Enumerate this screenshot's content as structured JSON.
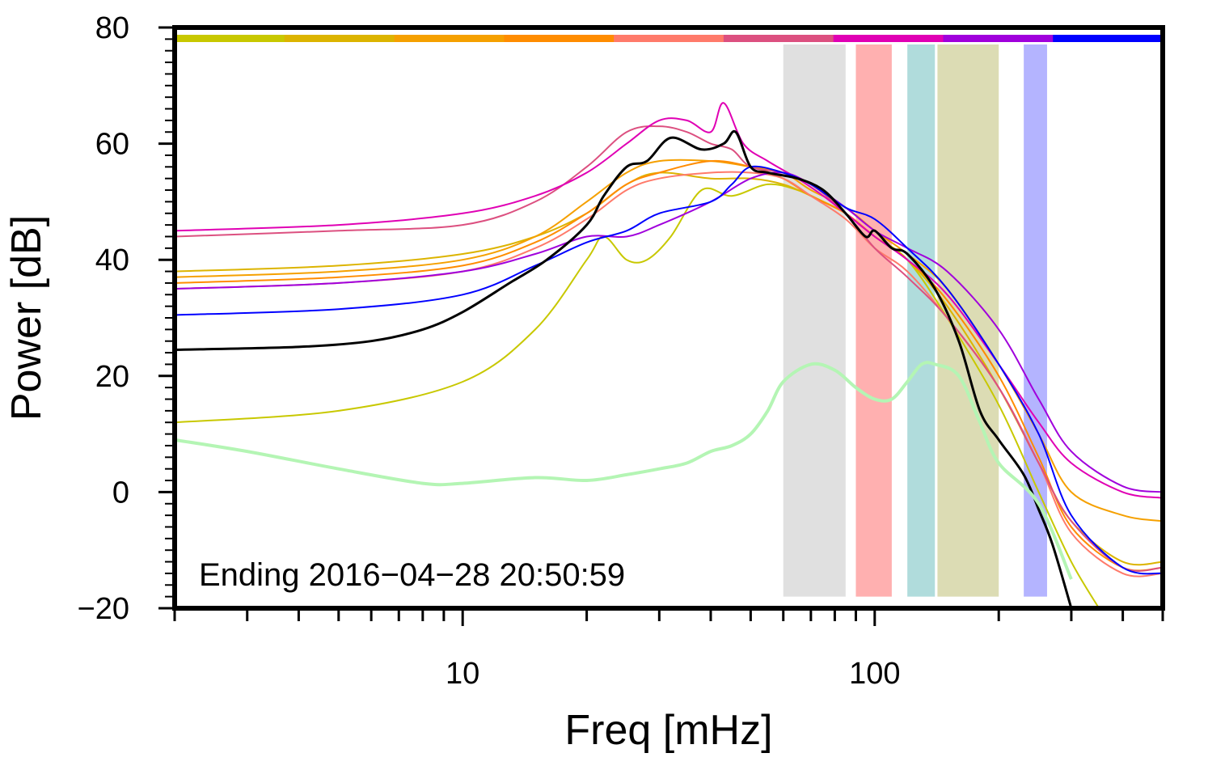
{
  "chart_data": {
    "type": "line",
    "xlabel": "Freq [mHz]",
    "ylabel": "Power [dB]",
    "x_scale": "log",
    "xlim": [
      2,
      500
    ],
    "ylim": [
      -20,
      80
    ],
    "x_ticks_labeled": [
      {
        "value": 10,
        "label": "10"
      },
      {
        "value": 100,
        "label": "100"
      }
    ],
    "y_ticks": [
      {
        "value": -20,
        "label": "−20"
      },
      {
        "value": 0,
        "label": "0"
      },
      {
        "value": 20,
        "label": "20"
      },
      {
        "value": 40,
        "label": "40"
      },
      {
        "value": 60,
        "label": "60"
      },
      {
        "value": 80,
        "label": "80"
      }
    ],
    "annotation": "Ending 2016−04−28 20:50:59",
    "grid": false,
    "top_color_bar": [
      "#c8c800",
      "#dcb400",
      "#f5a000",
      "#ff8c00",
      "#ff7a6a",
      "#dc5080",
      "#e000b4",
      "#a000dc",
      "#0000ff"
    ],
    "bands": [
      {
        "from": 60,
        "to": 85,
        "color": "#e0e0e0"
      },
      {
        "from": 90,
        "to": 110,
        "color": "#ffb0b0"
      },
      {
        "from": 120,
        "to": 140,
        "color": "#b0dcdc"
      },
      {
        "from": 142,
        "to": 200,
        "color": "#dcdcb4"
      },
      {
        "from": 230,
        "to": 262,
        "color": "#b4b4ff"
      }
    ],
    "series": [
      {
        "color": "#c8c800",
        "width": 2,
        "x": [
          2,
          5,
          10,
          15,
          20,
          22,
          25,
          28,
          32,
          38,
          45,
          55,
          65,
          75,
          85,
          100,
          120,
          150,
          200,
          250,
          300,
          350
        ],
        "y": [
          12,
          14,
          19,
          28,
          40,
          44,
          40,
          40,
          44,
          52,
          51,
          53,
          52,
          50,
          48,
          44,
          40,
          30,
          15,
          0,
          -12,
          -20
        ]
      },
      {
        "color": "#dcb400",
        "width": 2,
        "x": [
          2,
          5,
          10,
          15,
          20,
          25,
          30,
          40,
          50,
          60,
          70,
          85,
          100,
          120,
          150,
          200,
          250,
          300,
          400,
          500
        ],
        "y": [
          38,
          39,
          41,
          44,
          48,
          53,
          55,
          54,
          54,
          53,
          51,
          48,
          44,
          40,
          32,
          18,
          5,
          -5,
          -12,
          -12
        ]
      },
      {
        "color": "#f5a000",
        "width": 2,
        "x": [
          2,
          5,
          10,
          15,
          20,
          25,
          30,
          40,
          50,
          60,
          70,
          85,
          100,
          120,
          150,
          200,
          250,
          300,
          400,
          500
        ],
        "y": [
          37,
          38,
          40,
          44,
          50,
          55,
          57,
          57,
          56,
          55,
          52,
          49,
          45,
          41,
          35,
          22,
          10,
          0,
          -4,
          -5
        ]
      },
      {
        "color": "#ff8c00",
        "width": 2,
        "x": [
          2,
          5,
          10,
          15,
          20,
          25,
          30,
          40,
          50,
          60,
          70,
          85,
          100,
          120,
          150,
          200,
          250,
          300,
          400,
          500
        ],
        "y": [
          36,
          37,
          39,
          43,
          48,
          53,
          55,
          57,
          56,
          54,
          51,
          48,
          44,
          40,
          33,
          20,
          6,
          -6,
          -13,
          -13
        ]
      },
      {
        "color": "#ff7a6a",
        "width": 2,
        "x": [
          2,
          5,
          10,
          15,
          20,
          25,
          30,
          40,
          50,
          60,
          70,
          85,
          100,
          120,
          150,
          200,
          250,
          300,
          400,
          500
        ],
        "y": [
          35,
          36,
          38,
          42,
          47,
          52,
          54,
          55,
          55,
          54,
          51,
          47,
          42,
          38,
          30,
          18,
          5,
          -7,
          -14,
          -14
        ]
      },
      {
        "color": "#dc5080",
        "width": 2,
        "x": [
          2,
          5,
          10,
          15,
          20,
          25,
          30,
          35,
          40,
          45,
          50,
          60,
          70,
          85,
          100,
          120,
          150,
          200,
          250,
          300,
          400,
          500
        ],
        "y": [
          44,
          45,
          46,
          50,
          56,
          62,
          63,
          62,
          60,
          59,
          56,
          55,
          53,
          48,
          42,
          37,
          30,
          18,
          5,
          -5,
          -13,
          -13
        ]
      },
      {
        "color": "#e000b4",
        "width": 2,
        "x": [
          2,
          5,
          10,
          15,
          20,
          25,
          30,
          35,
          40,
          43,
          48,
          55,
          65,
          75,
          85,
          100,
          120,
          150,
          200,
          250,
          300,
          400,
          500
        ],
        "y": [
          45,
          46,
          48,
          51,
          55,
          60,
          64,
          64,
          62,
          67,
          60,
          57,
          54,
          51,
          48,
          44,
          40,
          34,
          22,
          12,
          5,
          0,
          -1
        ]
      },
      {
        "color": "#a000dc",
        "width": 2,
        "x": [
          2,
          5,
          10,
          15,
          20,
          25,
          30,
          40,
          50,
          60,
          70,
          85,
          100,
          120,
          150,
          200,
          250,
          300,
          400,
          500
        ],
        "y": [
          35,
          36,
          38,
          41,
          44,
          44,
          46,
          50,
          54,
          55,
          53,
          49,
          45,
          42,
          38,
          28,
          16,
          7,
          1,
          0
        ]
      },
      {
        "color": "#0000ff",
        "width": 2,
        "x": [
          2,
          5,
          10,
          15,
          20,
          25,
          30,
          40,
          45,
          50,
          60,
          70,
          85,
          100,
          120,
          150,
          200,
          250,
          300,
          400,
          500
        ],
        "y": [
          30.5,
          31.5,
          34,
          39,
          43,
          45,
          48,
          50,
          53,
          56,
          55,
          53,
          49,
          47,
          42,
          35,
          22,
          10,
          -4,
          -13,
          -14
        ]
      },
      {
        "color": "#000000",
        "width": 3,
        "x": [
          2,
          4,
          6,
          8,
          10,
          13,
          16,
          20,
          22,
          25,
          28,
          32,
          38,
          43,
          46,
          50,
          55,
          65,
          75,
          85,
          95,
          100,
          110,
          120,
          140,
          160,
          180,
          200,
          230,
          250,
          270,
          300
        ],
        "y": [
          24.5,
          25,
          26,
          28,
          31,
          36,
          40,
          46,
          51,
          56,
          57,
          61,
          59,
          60,
          62,
          56,
          55,
          54,
          52,
          48,
          44,
          45,
          42,
          41,
          35,
          26,
          14,
          9,
          3,
          -3,
          -9,
          -20
        ]
      },
      {
        "color": "#b4f5b4",
        "width": 4,
        "x": [
          2,
          3,
          5,
          8,
          10,
          15,
          20,
          25,
          30,
          35,
          40,
          45,
          50,
          55,
          60,
          70,
          80,
          90,
          100,
          110,
          120,
          130,
          140,
          160,
          180,
          200,
          250,
          300
        ],
        "y": [
          9,
          7,
          4,
          1.5,
          1.5,
          2.5,
          2,
          3,
          4,
          5,
          7,
          8,
          10,
          14,
          19,
          22,
          21,
          18,
          16,
          16,
          19,
          22,
          22,
          20,
          12,
          5,
          -2,
          -15
        ]
      }
    ]
  }
}
